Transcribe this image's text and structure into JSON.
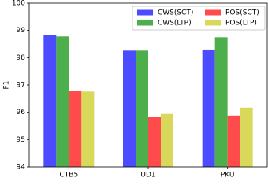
{
  "chart_data": {
    "type": "bar",
    "y_label": "F1",
    "categories": [
      "CTB5",
      "UD1",
      "PKU"
    ],
    "series": [
      {
        "name": "CWS(SCT)",
        "color": "#4b4bff",
        "values": [
          98.82,
          98.26,
          98.3
        ]
      },
      {
        "name": "CWS(LTP)",
        "color": "#4caf4c",
        "values": [
          98.78,
          98.26,
          98.75
        ]
      },
      {
        "name": "POS(SCT)",
        "color": "#ff4b4b",
        "values": [
          96.78,
          95.82,
          95.88
        ]
      },
      {
        "name": "POS(LTP)",
        "color": "#d8d85a",
        "values": [
          96.76,
          95.94,
          96.17
        ]
      }
    ],
    "ylim": [
      94,
      100
    ],
    "yticks": [
      94,
      95,
      96,
      97,
      98,
      99,
      100
    ],
    "legend": "upper-right"
  }
}
